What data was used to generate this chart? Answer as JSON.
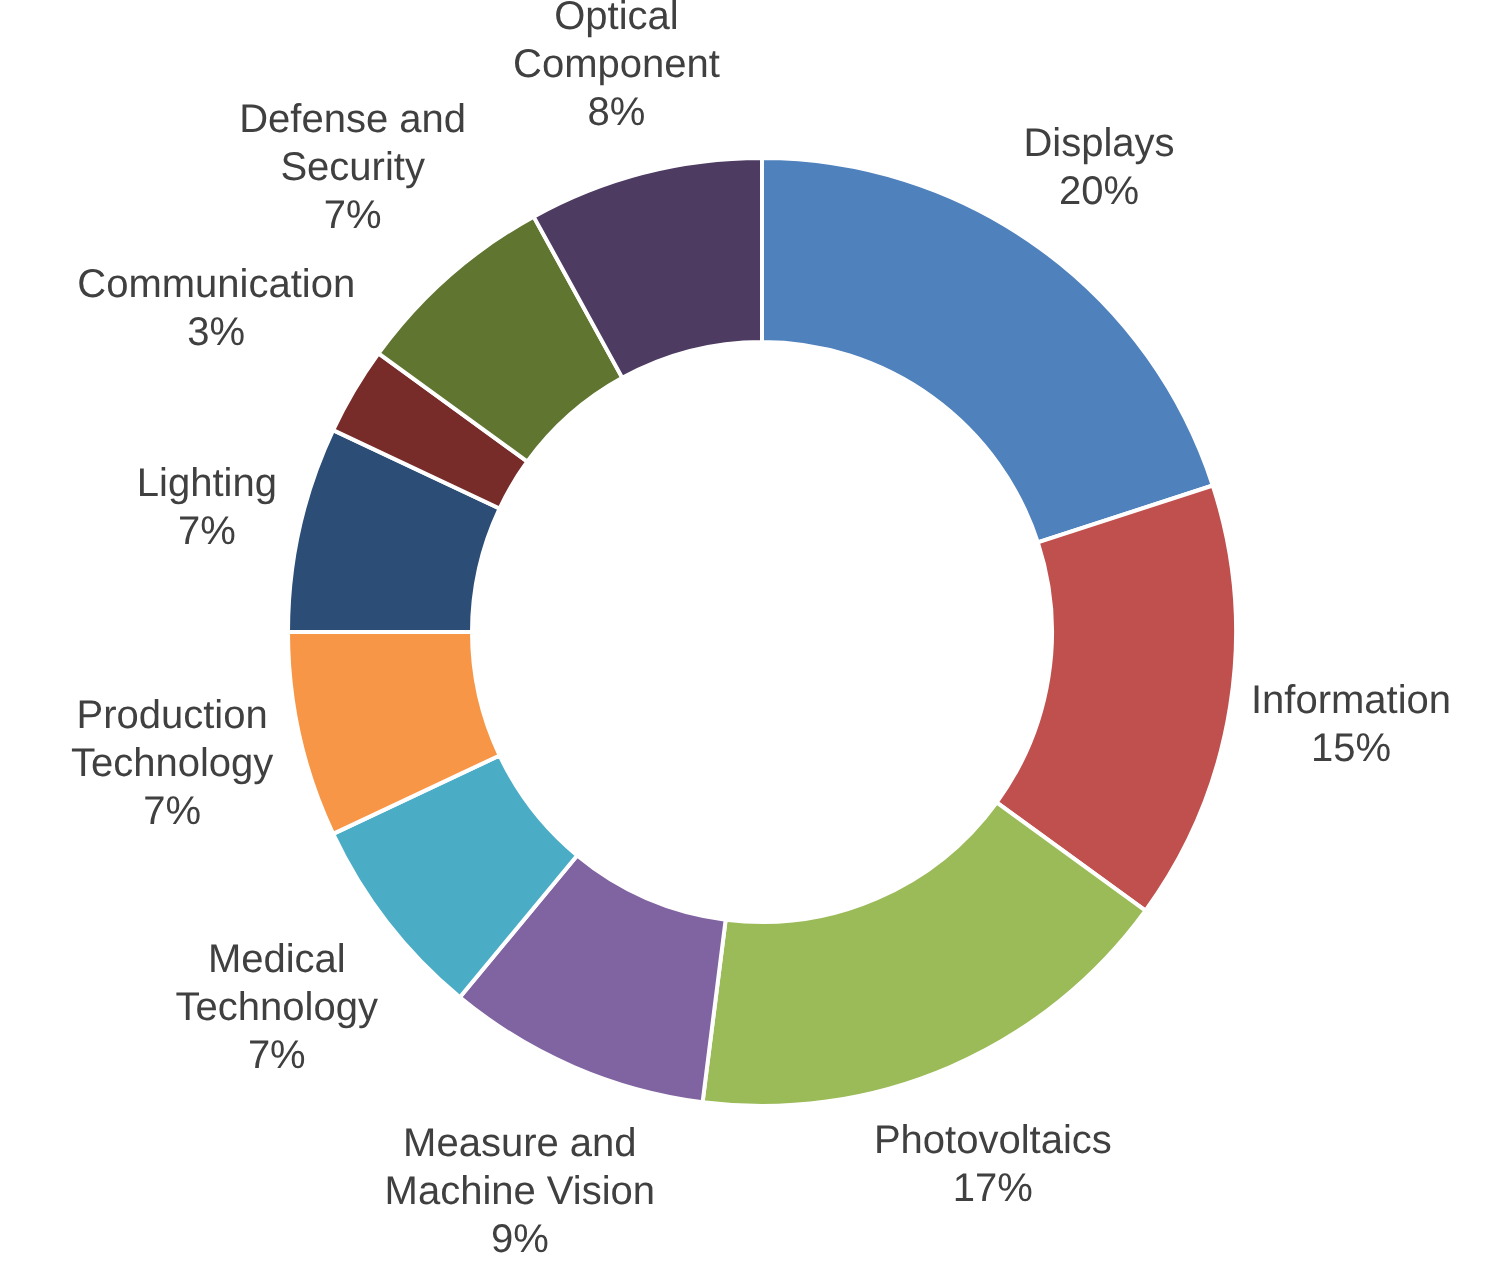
{
  "chart_data": {
    "type": "donut",
    "categories": [
      "Displays",
      "Information",
      "Photovoltaics",
      "Measure and\nMachine Vision",
      "Medical\nTechnology",
      "Production\nTechnology",
      "Lighting",
      "Communication",
      "Defense and\nSecurity",
      "Optical\nComponent"
    ],
    "values": [
      20,
      15,
      17,
      9,
      7,
      7,
      7,
      3,
      7,
      8
    ],
    "value_labels": [
      "20%",
      "15%",
      "17%",
      "9%",
      "7%",
      "7%",
      "7%",
      "3%",
      "7%",
      "8%"
    ],
    "colors": [
      "#4f81bd",
      "#c0504d",
      "#9bbb59",
      "#8064a2",
      "#4bacc6",
      "#f79646",
      "#2c4d75",
      "#772c2a",
      "#5f7530",
      "#4d3b62"
    ],
    "legend": false
  }
}
